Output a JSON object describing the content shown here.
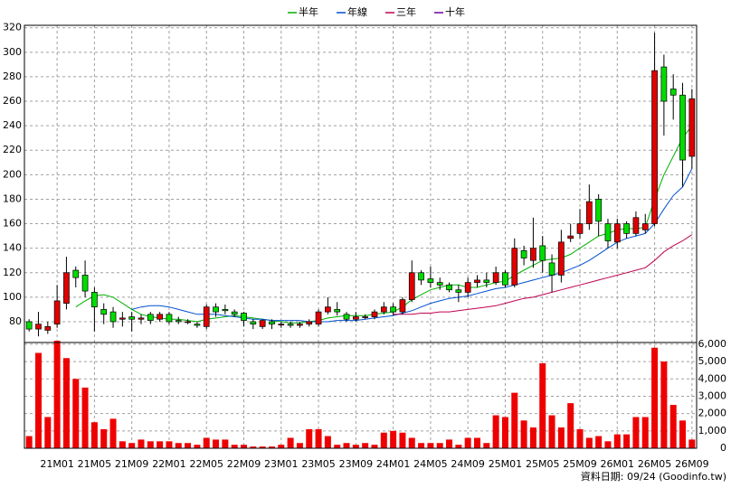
{
  "chart_data": [
    {
      "type": "candlestick",
      "categories": [
        null,
        null,
        null,
        "21M01",
        null,
        null,
        null,
        "21M05",
        null,
        null,
        null,
        "21M09",
        null,
        null,
        null,
        "22M01",
        null,
        null,
        null,
        "22M05",
        null,
        null,
        null,
        "22M09",
        null,
        null,
        null,
        "23M01",
        null,
        null,
        null,
        "23M05",
        null,
        null,
        null,
        "23M09",
        null,
        null,
        null,
        "24M01",
        null,
        null,
        null,
        "24M05",
        null,
        null,
        null,
        "24M09",
        null,
        null,
        null,
        "25M01",
        null,
        null,
        null,
        "25M05",
        null,
        null,
        null,
        "25M09",
        null,
        null,
        null,
        "26M01",
        null,
        null,
        null,
        "26M05",
        null,
        null,
        null,
        "26M09"
      ],
      "open": [
        80,
        74,
        73,
        78,
        95,
        122,
        118,
        104,
        90,
        88,
        82,
        84,
        82,
        86,
        82,
        86,
        81,
        80,
        78,
        76,
        92,
        90,
        88,
        87,
        80,
        76,
        80,
        78,
        78,
        77,
        78,
        78,
        88,
        90,
        86,
        82,
        84,
        84,
        88,
        92,
        88,
        98,
        120,
        115,
        112,
        110,
        106,
        104,
        112,
        114,
        112,
        120,
        110,
        138,
        130,
        142,
        128,
        118,
        148,
        152,
        160,
        180,
        160,
        145,
        160,
        152,
        155,
        160,
        288,
        270,
        265,
        215
      ],
      "high": [
        82,
        88,
        80,
        110,
        133,
        125,
        130,
        108,
        95,
        92,
        88,
        88,
        86,
        88,
        88,
        88,
        84,
        82,
        80,
        94,
        95,
        94,
        90,
        88,
        82,
        82,
        82,
        80,
        80,
        80,
        82,
        90,
        100,
        96,
        88,
        88,
        86,
        90,
        96,
        95,
        100,
        130,
        122,
        125,
        116,
        112,
        110,
        116,
        118,
        120,
        125,
        122,
        148,
        142,
        165,
        150,
        135,
        155,
        160,
        172,
        192,
        184,
        164,
        164,
        162,
        170,
        168,
        316,
        298,
        282,
        275,
        270
      ],
      "low": [
        72,
        68,
        70,
        75,
        90,
        108,
        100,
        72,
        78,
        75,
        76,
        72,
        78,
        78,
        80,
        78,
        78,
        78,
        75,
        74,
        84,
        86,
        84,
        76,
        74,
        74,
        74,
        75,
        75,
        75,
        76,
        76,
        86,
        85,
        80,
        80,
        82,
        82,
        86,
        85,
        86,
        96,
        110,
        108,
        106,
        104,
        96,
        100,
        108,
        108,
        110,
        108,
        108,
        126,
        124,
        120,
        104,
        112,
        145,
        148,
        155,
        150,
        140,
        140,
        148,
        150,
        152,
        158,
        232,
        245,
        190,
        205
      ],
      "close": [
        74,
        78,
        76,
        97,
        120,
        116,
        105,
        92,
        86,
        80,
        83,
        82,
        83,
        81,
        86,
        80,
        80,
        80,
        77,
        92,
        88,
        89,
        86,
        81,
        78,
        81,
        78,
        78,
        77,
        78,
        80,
        88,
        92,
        88,
        82,
        84,
        84,
        88,
        92,
        88,
        98,
        120,
        114,
        112,
        110,
        106,
        104,
        112,
        114,
        112,
        120,
        110,
        140,
        132,
        140,
        130,
        118,
        145,
        150,
        160,
        178,
        162,
        146,
        160,
        152,
        165,
        160,
        285,
        260,
        265,
        212,
        262
      ],
      "up_color": "#e00000",
      "down_color": "#00dd00",
      "series": [
        {
          "name": "半年",
          "color": "#00b000",
          "values": [
            null,
            null,
            null,
            null,
            null,
            92,
            97,
            101,
            102,
            100,
            95,
            90,
            86,
            84,
            83,
            82,
            82,
            81,
            80,
            82,
            83,
            84,
            85,
            84,
            83,
            82,
            81,
            80,
            79,
            79,
            80,
            81,
            83,
            84,
            85,
            85,
            85,
            86,
            87,
            88,
            92,
            98,
            102,
            106,
            108,
            110,
            110,
            108,
            108,
            110,
            112,
            113,
            118,
            122,
            126,
            130,
            131,
            132,
            135,
            140,
            145,
            150,
            152,
            155,
            156,
            156,
            157,
            180,
            200,
            215,
            230,
            240
          ]
        },
        {
          "name": "年線",
          "color": "#0050d0",
          "values": [
            null,
            null,
            null,
            null,
            null,
            null,
            null,
            null,
            null,
            null,
            null,
            90,
            92,
            93,
            93,
            92,
            90,
            88,
            86,
            86,
            86,
            85,
            84,
            83,
            82,
            82,
            81,
            81,
            81,
            81,
            80,
            80,
            80,
            81,
            81,
            81,
            82,
            83,
            84,
            85,
            87,
            89,
            92,
            95,
            97,
            99,
            100,
            101,
            103,
            105,
            107,
            108,
            110,
            112,
            114,
            116,
            118,
            120,
            123,
            126,
            130,
            135,
            140,
            145,
            148,
            150,
            152,
            160,
            172,
            183,
            190,
            205
          ]
        },
        {
          "name": "三年",
          "color": "#c00050",
          "values": [
            null,
            null,
            null,
            null,
            null,
            null,
            null,
            null,
            null,
            null,
            null,
            null,
            null,
            null,
            null,
            null,
            null,
            null,
            null,
            null,
            null,
            null,
            null,
            null,
            null,
            null,
            null,
            null,
            null,
            null,
            null,
            null,
            null,
            null,
            null,
            null,
            null,
            null,
            null,
            86,
            86,
            86,
            87,
            87,
            88,
            88,
            89,
            90,
            91,
            92,
            93,
            95,
            97,
            99,
            100,
            102,
            104,
            106,
            108,
            110,
            112,
            114,
            116,
            118,
            120,
            122,
            124,
            130,
            137,
            142,
            146,
            151
          ]
        },
        {
          "name": "十年",
          "color": "#7000a0",
          "values": [
            null,
            null,
            null,
            null,
            null,
            null,
            null,
            null,
            null,
            null,
            null,
            null,
            null,
            null,
            null,
            null,
            null,
            null,
            null,
            null,
            null,
            null,
            null,
            null,
            null,
            null,
            null,
            null,
            null,
            null,
            null,
            null,
            null,
            null,
            null,
            null,
            null,
            null,
            null,
            null,
            null,
            null,
            null,
            null,
            null,
            null,
            null,
            null,
            null,
            null,
            null,
            null,
            null,
            null,
            null,
            null,
            null,
            null,
            null,
            null,
            null,
            null,
            null,
            null,
            null,
            null,
            null,
            null,
            null,
            null,
            null,
            null
          ]
        }
      ],
      "ylim": [
        63,
        322
      ],
      "yticks": [
        80,
        100,
        120,
        140,
        160,
        180,
        200,
        220,
        240,
        260,
        280,
        300,
        320
      ],
      "grid": true
    },
    {
      "type": "bar",
      "color": "#ee0000",
      "values": [
        700,
        5500,
        1800,
        6200,
        5200,
        4000,
        3500,
        1500,
        1100,
        1700,
        400,
        300,
        500,
        400,
        400,
        400,
        300,
        300,
        200,
        600,
        500,
        500,
        200,
        200,
        100,
        100,
        100,
        200,
        600,
        300,
        1100,
        1100,
        700,
        200,
        300,
        200,
        300,
        200,
        900,
        1000,
        900,
        600,
        300,
        300,
        300,
        500,
        200,
        600,
        600,
        300,
        1900,
        1800,
        3200,
        1600,
        1200,
        4900,
        1900,
        1200,
        2600,
        1100,
        600,
        700,
        400,
        800,
        800,
        1800,
        1800,
        5800,
        5000,
        2500,
        1600,
        500
      ],
      "ylim": [
        0,
        6100
      ],
      "yticks": [
        0,
        {
          "value": 1000,
          "label": "1,000"
        },
        {
          "value": 2000,
          "label": "2,000"
        },
        {
          "value": 3000,
          "label": "3,000"
        },
        {
          "value": 4000,
          "label": "4,000"
        },
        {
          "value": 5000,
          "label": "5,000"
        },
        {
          "value": 6000,
          "label": "6,000"
        }
      ],
      "grid": true
    }
  ],
  "footer": "資料日期: 09/24 (Goodinfo.tw)"
}
